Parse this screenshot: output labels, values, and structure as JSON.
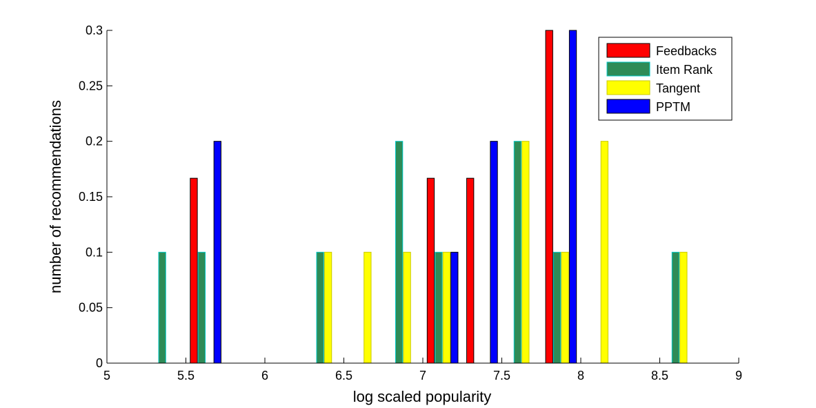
{
  "chart_data": {
    "type": "bar",
    "xlabel": "log scaled popularity",
    "ylabel": "number of recommendations",
    "xlim": [
      5,
      9
    ],
    "ylim": [
      0,
      0.3
    ],
    "x_ticks": [
      "5",
      "5.5",
      "6",
      "6.5",
      "7",
      "7.5",
      "8",
      "8.5",
      "9"
    ],
    "y_ticks": [
      "0",
      "0.05",
      "0.1",
      "0.15",
      "0.2",
      "0.25",
      "0.3"
    ],
    "bins": [
      5.125,
      5.375,
      5.625,
      5.875,
      6.125,
      6.375,
      6.625,
      6.875,
      7.125,
      7.375,
      7.625,
      7.875,
      8.125,
      8.375,
      8.625,
      8.875
    ],
    "legend_position": "top-right",
    "grid": false,
    "series": [
      {
        "name": "Feedbacks",
        "color": "#ff0000",
        "edge": "#000000",
        "values": [
          0,
          0,
          0.1667,
          0,
          0,
          0,
          0,
          0,
          0.1667,
          0.1667,
          0,
          0.3,
          0,
          0,
          0,
          0
        ]
      },
      {
        "name": "Item Rank",
        "color": "#2e8b57",
        "edge": "#00c8c8",
        "values": [
          0,
          0.1,
          0.1,
          0,
          0,
          0.1,
          0,
          0.2,
          0.1,
          0,
          0.2,
          0.1,
          0,
          0,
          0.1,
          0
        ]
      },
      {
        "name": "Tangent",
        "color": "#ffff00",
        "edge": "#c8c800",
        "values": [
          0,
          0,
          0,
          0,
          0,
          0.1,
          0.1,
          0.1,
          0.1,
          0,
          0.2,
          0.1,
          0.2,
          0,
          0.1,
          0
        ]
      },
      {
        "name": "PPTM",
        "color": "#0000ff",
        "edge": "#000000",
        "values": [
          0,
          0,
          0.2,
          0,
          0,
          0,
          0,
          0,
          0.1,
          0.2,
          0,
          0.3,
          0,
          0,
          0,
          0
        ]
      }
    ]
  }
}
